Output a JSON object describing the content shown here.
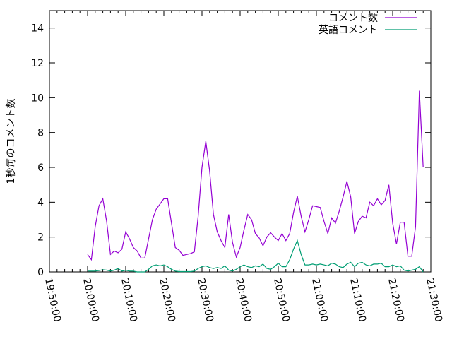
{
  "chart_data": {
    "type": "line",
    "title": "",
    "xlabel": "",
    "ylabel": "1秒毎のコメント数",
    "xlim": [
      "19:50:00",
      "21:30:00"
    ],
    "ylim": [
      0,
      15
    ],
    "x_tick_labels": [
      "19:50:00",
      "20:00:00",
      "20:10:00",
      "20:20:00",
      "20:30:00",
      "20:40:00",
      "20:50:00",
      "21:00:00",
      "21:10:00",
      "21:20:00",
      "21:30:00"
    ],
    "y_tick_labels": [
      "0",
      "2",
      "4",
      "6",
      "8",
      "10",
      "12",
      "14"
    ],
    "grid": false,
    "legend_position": "top-right",
    "x": [
      "20:00",
      "20:01",
      "20:02",
      "20:03",
      "20:04",
      "20:05",
      "20:06",
      "20:07",
      "20:08",
      "20:09",
      "20:10",
      "20:11",
      "20:12",
      "20:13",
      "20:14",
      "20:15",
      "20:16",
      "20:17",
      "20:18",
      "20:19",
      "20:20",
      "20:21",
      "20:22",
      "20:23",
      "20:24",
      "20:25",
      "20:26",
      "20:27",
      "20:28",
      "20:29",
      "20:30",
      "20:31",
      "20:32",
      "20:33",
      "20:34",
      "20:35",
      "20:36",
      "20:37",
      "20:38",
      "20:39",
      "20:40",
      "20:41",
      "20:42",
      "20:43",
      "20:44",
      "20:45",
      "20:46",
      "20:47",
      "20:48",
      "20:49",
      "20:50",
      "20:51",
      "20:52",
      "20:53",
      "20:54",
      "20:55",
      "20:56",
      "20:57",
      "20:58",
      "20:59",
      "21:00",
      "21:01",
      "21:02",
      "21:03",
      "21:04",
      "21:05",
      "21:06",
      "21:07",
      "21:08",
      "21:09",
      "21:10",
      "21:11",
      "21:12",
      "21:13",
      "21:14",
      "21:15",
      "21:16",
      "21:17",
      "21:18",
      "21:19",
      "21:20",
      "21:21",
      "21:22",
      "21:23",
      "21:24",
      "21:25",
      "21:26",
      "21:27",
      "21:28"
    ],
    "series": [
      {
        "name": "コメント数",
        "color": "#9400d3",
        "values": [
          1.0,
          0.7,
          2.6,
          3.8,
          4.2,
          2.9,
          1.0,
          1.2,
          1.1,
          1.3,
          2.3,
          1.9,
          1.4,
          1.2,
          0.8,
          0.8,
          1.9,
          3.0,
          3.6,
          3.9,
          4.2,
          4.2,
          2.8,
          1.4,
          1.25,
          0.95,
          1.0,
          1.05,
          1.15,
          3.2,
          6.0,
          7.5,
          5.8,
          3.3,
          2.3,
          1.8,
          1.4,
          3.3,
          1.7,
          0.85,
          1.4,
          2.4,
          3.3,
          3.0,
          2.2,
          1.95,
          1.5,
          2.0,
          2.25,
          2.0,
          1.8,
          2.2,
          1.8,
          2.2,
          3.4,
          4.35,
          3.2,
          2.3,
          3.0,
          3.8,
          3.75,
          3.7,
          2.9,
          2.2,
          3.1,
          2.8,
          3.5,
          4.3,
          5.2,
          4.3,
          2.2,
          2.9,
          3.2,
          3.1,
          4.0,
          3.8,
          4.2,
          3.85,
          4.1,
          5.0,
          2.8,
          1.6,
          2.85,
          2.85,
          0.9,
          0.9,
          2.6,
          10.4,
          6.0
        ]
      },
      {
        "name": "英語コメント",
        "color": "#009e73",
        "values": [
          0.05,
          0.05,
          0.05,
          0.08,
          0.12,
          0.1,
          0.05,
          0.1,
          0.2,
          0.05,
          0.1,
          0.05,
          0.05,
          0.0,
          0.0,
          0.0,
          0.15,
          0.35,
          0.4,
          0.35,
          0.4,
          0.3,
          0.15,
          0.05,
          0.02,
          0.02,
          0.02,
          0.02,
          0.05,
          0.2,
          0.3,
          0.35,
          0.25,
          0.2,
          0.25,
          0.2,
          0.35,
          0.1,
          0.05,
          0.15,
          0.3,
          0.4,
          0.3,
          0.25,
          0.35,
          0.3,
          0.45,
          0.2,
          0.15,
          0.3,
          0.5,
          0.3,
          0.3,
          0.7,
          1.3,
          1.8,
          1.0,
          0.4,
          0.4,
          0.45,
          0.4,
          0.45,
          0.4,
          0.35,
          0.5,
          0.45,
          0.3,
          0.25,
          0.45,
          0.55,
          0.3,
          0.5,
          0.55,
          0.4,
          0.35,
          0.45,
          0.45,
          0.5,
          0.3,
          0.3,
          0.4,
          0.3,
          0.35,
          0.1,
          0.05,
          0.1,
          0.15,
          0.3,
          0.0
        ]
      }
    ]
  }
}
